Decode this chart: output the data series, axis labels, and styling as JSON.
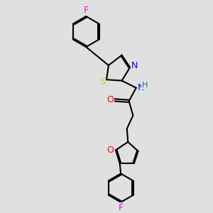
{
  "bg_color": "#e0e0e0",
  "bond_color": "#000000",
  "N_color": "#0000ff",
  "O_color": "#ff0000",
  "S_color": "#cccc00",
  "F_color": "#ff00cc",
  "H_color": "#008080",
  "line_width": 1.5,
  "dbo": 0.055,
  "font_size": 9,
  "xlim": [
    0,
    10
  ],
  "ylim": [
    0,
    10
  ]
}
